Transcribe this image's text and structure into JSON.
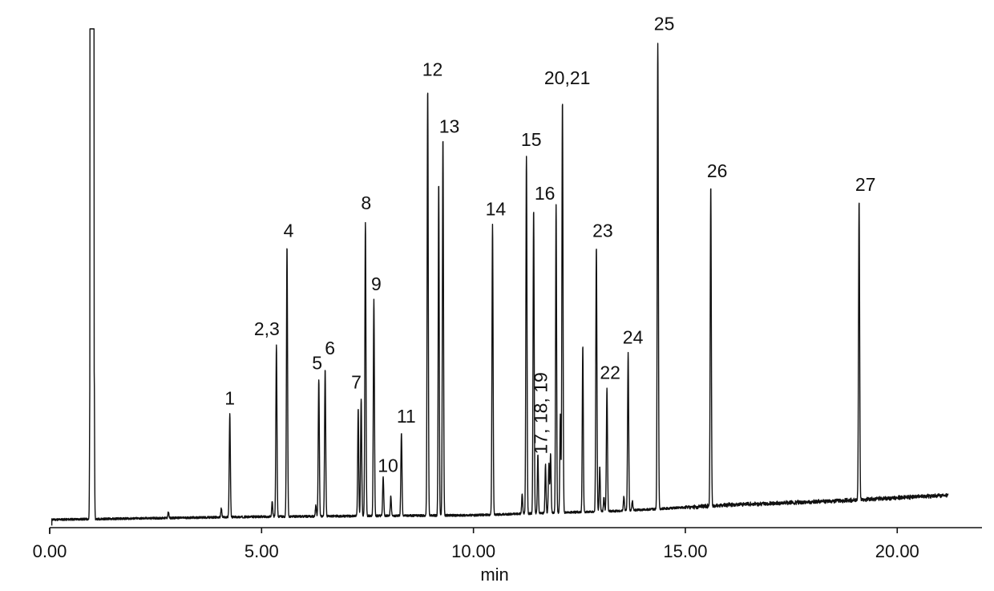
{
  "chart_data": {
    "type": "line",
    "title": "",
    "xlabel": "min",
    "ylabel": "",
    "xlim": [
      0,
      22
    ],
    "ylim": [
      0,
      100
    ],
    "x_ticks": [
      0,
      5,
      10,
      15,
      20
    ],
    "x_tick_labels": [
      "0.00",
      "5.00",
      "10.00",
      "15.00",
      "20.00"
    ],
    "grid": false,
    "legend": "none",
    "trace_end": 21.2,
    "baseline": [
      [
        0.05,
        0
      ],
      [
        5,
        0.6
      ],
      [
        10,
        0.9
      ],
      [
        13.5,
        1.8
      ],
      [
        14.4,
        2.2
      ],
      [
        16,
        3
      ],
      [
        18,
        3.6
      ],
      [
        19,
        4
      ],
      [
        21.2,
        5
      ]
    ],
    "solvent_peak": {
      "x": 1.0,
      "height": 100
    },
    "peaks": [
      {
        "label": "1",
        "x": 4.25,
        "height": 21
      },
      {
        "label": "2,3",
        "x": 5.35,
        "height": 35
      },
      {
        "label": "4",
        "x": 5.6,
        "height": 55
      },
      {
        "label": "5",
        "x": 6.35,
        "height": 28
      },
      {
        "label": "6",
        "x": 6.5,
        "height": 30
      },
      {
        "label": "7",
        "x": 7.35,
        "height": 24
      },
      {
        "label": "8",
        "x": 7.45,
        "height": 60
      },
      {
        "label": "9",
        "x": 7.65,
        "height": 44
      },
      {
        "label": "10",
        "x": 7.87,
        "height": 8
      },
      {
        "label": "11",
        "x": 8.3,
        "height": 17
      },
      {
        "label": "12",
        "x": 8.92,
        "height": 87
      },
      {
        "label": "13",
        "x": 9.28,
        "height": 77
      },
      {
        "label": "14",
        "x": 10.45,
        "height": 59
      },
      {
        "label": "15",
        "x": 11.25,
        "height": 73
      },
      {
        "label": "16",
        "x": 11.42,
        "height": 62
      },
      {
        "label": "17, 18, 19",
        "x": 11.78,
        "height": 10
      },
      {
        "label": "20,21",
        "x": 12.1,
        "height": 84
      },
      {
        "label": "22",
        "x": 13.15,
        "height": 25
      },
      {
        "label": "23",
        "x": 12.9,
        "height": 54
      },
      {
        "label": "24",
        "x": 13.65,
        "height": 32
      },
      {
        "label": "25",
        "x": 14.35,
        "height": 95
      },
      {
        "label": "26",
        "x": 15.6,
        "height": 65
      },
      {
        "label": "27",
        "x": 19.1,
        "height": 61
      }
    ],
    "minor_peaks": [
      {
        "x": 2.8,
        "height": 1.2
      },
      {
        "x": 4.05,
        "height": 1.8
      },
      {
        "x": 5.25,
        "height": 3
      },
      {
        "x": 6.28,
        "height": 2.2
      },
      {
        "x": 7.28,
        "height": 22
      },
      {
        "x": 8.05,
        "height": 4
      },
      {
        "x": 9.18,
        "height": 68
      },
      {
        "x": 11.15,
        "height": 4
      },
      {
        "x": 11.52,
        "height": 12
      },
      {
        "x": 11.7,
        "height": 10
      },
      {
        "x": 11.82,
        "height": 12
      },
      {
        "x": 11.95,
        "height": 63
      },
      {
        "x": 12.05,
        "height": 20
      },
      {
        "x": 12.58,
        "height": 34
      },
      {
        "x": 12.98,
        "height": 9
      },
      {
        "x": 13.08,
        "height": 3
      },
      {
        "x": 13.55,
        "height": 3
      },
      {
        "x": 13.75,
        "height": 2
      }
    ]
  }
}
